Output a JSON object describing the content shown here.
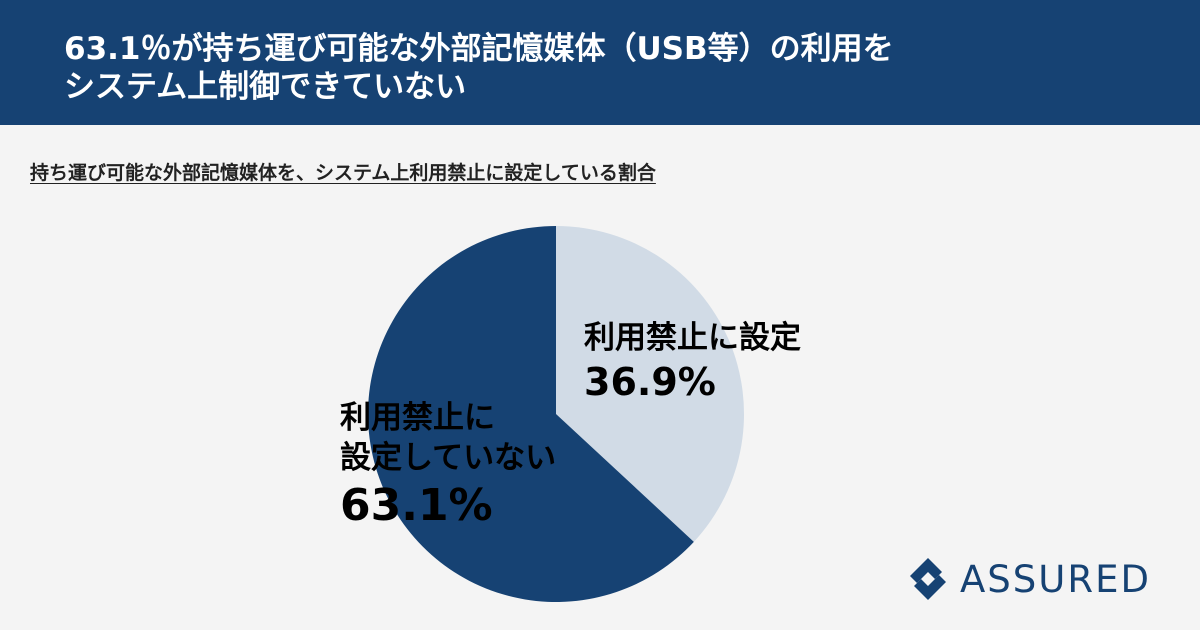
{
  "header": {
    "title_line1": "63.1％が持ち運び可能な外部記憶媒体（USB等）の利用を",
    "title_line2": "システム上制御できていない"
  },
  "subtitle": "持ち運び可能な外部記憶媒体を、システム上利用禁止に設定している割合",
  "chart_data": {
    "type": "pie",
    "slices": [
      {
        "label_line1": "利用禁止に設定",
        "label_line2": "",
        "value": 36.9,
        "display": "36.9%",
        "color": "#d1dbe6"
      },
      {
        "label_line1": "利用禁止に",
        "label_line2": "設定していない",
        "value": 63.1,
        "display": "63.1%",
        "color": "#164273"
      }
    ]
  },
  "logo": {
    "text": "ASSURED",
    "color": "#164273"
  }
}
